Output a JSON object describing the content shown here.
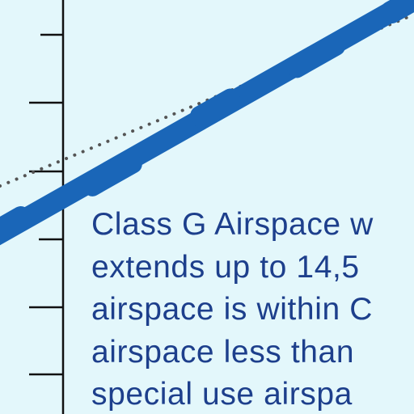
{
  "diagram": {
    "background_color": "#e3f7fb",
    "line_color": "#1a66b8",
    "text_color": "#1d3f8c",
    "axis_color": "#111111",
    "dotted_color": "#555555",
    "caption_lines": [
      "Class G Airspace w",
      "extends up to 14,5",
      "airspace is within C",
      "airspace less than",
      "special use airspa"
    ]
  }
}
